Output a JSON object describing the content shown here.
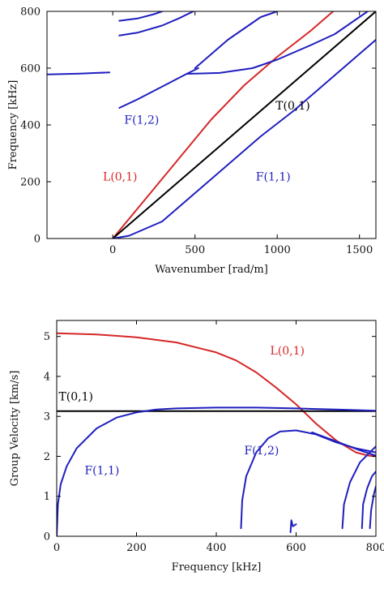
{
  "chart_data": [
    {
      "type": "line",
      "xlabel": "Wavenumber [rad/m]",
      "ylabel": "Frequency [kHz]",
      "xlim": [
        -400,
        1600
      ],
      "ylim": [
        0,
        800
      ],
      "xticks": [
        0,
        500,
        1000,
        1500
      ],
      "yticks": [
        0,
        200,
        400,
        600,
        800
      ],
      "grid": false,
      "colors": {
        "red": "#d62728",
        "blue": "#1f1fbf",
        "black": "#000000"
      },
      "series": [
        {
          "name": "L(0,1)",
          "color": "red",
          "x": [
            0,
            200,
            400,
            600,
            800,
            1000,
            1200,
            1340
          ],
          "y": [
            0,
            140,
            280,
            420,
            540,
            640,
            730,
            800
          ]
        },
        {
          "name": "T(0,1)",
          "color": "black",
          "x": [
            0,
            400,
            800,
            1200,
            1600
          ],
          "y": [
            0,
            200,
            400,
            600,
            800
          ]
        },
        {
          "name": "F(1,1)",
          "color": "blue",
          "x": [
            0,
            100,
            300,
            500,
            700,
            900,
            1100,
            1300,
            1500,
            1600
          ],
          "y": [
            0,
            10,
            60,
            160,
            260,
            360,
            450,
            550,
            650,
            700
          ]
        },
        {
          "name": "F(1,2)",
          "color": "blue",
          "x": [
            40,
            150,
            250,
            350,
            450,
            520
          ],
          "y": [
            460,
            490,
            520,
            550,
            580,
            600
          ]
        },
        {
          "name": "",
          "color": "blue",
          "x": [
            -400,
            -300,
            -200,
            -100,
            -20
          ],
          "y": [
            578,
            579,
            581,
            583,
            585
          ]
        },
        {
          "name": "",
          "color": "blue",
          "x": [
            450,
            650,
            850,
            1000,
            1200,
            1350,
            1550
          ],
          "y": [
            580,
            583,
            600,
            630,
            680,
            720,
            800
          ]
        },
        {
          "name": "",
          "color": "blue",
          "x": [
            40,
            150,
            300,
            400,
            490
          ],
          "y": [
            715,
            725,
            750,
            775,
            800
          ]
        },
        {
          "name": "",
          "color": "blue",
          "x": [
            40,
            150,
            250,
            300
          ],
          "y": [
            767,
            775,
            790,
            800
          ]
        },
        {
          "name": "",
          "color": "blue",
          "x": [
            500,
            600,
            700,
            800,
            900,
            1000
          ],
          "y": [
            600,
            650,
            700,
            740,
            780,
            800
          ]
        }
      ],
      "annotations": [
        {
          "text": "T(0,1)",
          "x": 990,
          "y": 455,
          "color": "black"
        },
        {
          "text": "F(1,2)",
          "x": 70,
          "y": 405,
          "color": "blue"
        },
        {
          "text": "L(0,1)",
          "x": -60,
          "y": 205,
          "color": "red"
        },
        {
          "text": "F(1,1)",
          "x": 870,
          "y": 205,
          "color": "blue"
        }
      ]
    },
    {
      "type": "line",
      "xlabel": "Frequency [kHz]",
      "ylabel": "Group Velocity [km/s]",
      "xlim": [
        0,
        800
      ],
      "ylim": [
        0,
        5.4
      ],
      "xticks": [
        0,
        200,
        400,
        600,
        800
      ],
      "yticks": [
        0,
        1,
        2,
        3,
        4,
        5
      ],
      "grid": false,
      "series": [
        {
          "name": "L(0,1)",
          "color": "red",
          "x": [
            0,
            100,
            200,
            300,
            400,
            450,
            500,
            550,
            600,
            650,
            700,
            750,
            780,
            800
          ],
          "y": [
            5.08,
            5.05,
            4.98,
            4.85,
            4.6,
            4.4,
            4.1,
            3.72,
            3.3,
            2.82,
            2.4,
            2.1,
            2.02,
            2.0
          ]
        },
        {
          "name": "T(0,1)",
          "color": "black",
          "x": [
            0,
            800
          ],
          "y": [
            3.13,
            3.13
          ]
        },
        {
          "name": "F(1,1)",
          "color": "blue",
          "x": [
            0,
            3,
            10,
            25,
            50,
            100,
            150,
            200,
            250,
            300,
            400,
            500,
            600,
            700,
            800
          ],
          "y": [
            0,
            0.8,
            1.3,
            1.75,
            2.2,
            2.7,
            2.97,
            3.1,
            3.17,
            3.2,
            3.22,
            3.22,
            3.2,
            3.17,
            3.14
          ]
        },
        {
          "name": "F(1,2)",
          "color": "blue",
          "x": [
            462,
            465,
            475,
            500,
            530,
            560,
            600,
            650,
            700,
            750,
            800
          ],
          "y": [
            0.2,
            0.9,
            1.5,
            2.1,
            2.45,
            2.62,
            2.65,
            2.55,
            2.35,
            2.2,
            2.1
          ]
        },
        {
          "name": "",
          "color": "blue",
          "x": [
            586,
            588,
            592,
            600
          ],
          "y": [
            0.1,
            0.4,
            0.25,
            0.3
          ]
        },
        {
          "name": "",
          "color": "blue",
          "x": [
            716,
            720,
            735,
            760,
            790,
            800
          ],
          "y": [
            0.2,
            0.8,
            1.35,
            1.85,
            2.15,
            2.25
          ]
        },
        {
          "name": "",
          "color": "blue",
          "x": [
            765,
            768,
            778,
            790,
            800
          ],
          "y": [
            0.2,
            0.8,
            1.2,
            1.5,
            1.62
          ]
        },
        {
          "name": "",
          "color": "blue",
          "x": [
            785,
            788,
            795,
            800
          ],
          "y": [
            0.2,
            0.65,
            1.05,
            1.25
          ]
        },
        {
          "name": "",
          "color": "blue",
          "x": [
            640,
            680,
            720,
            760,
            790,
            800
          ],
          "y": [
            2.6,
            2.45,
            2.3,
            2.15,
            2.05,
            2.02
          ]
        }
      ],
      "annotations": [
        {
          "text": "L(0,1)",
          "x": 535,
          "y": 4.55,
          "color": "red"
        },
        {
          "text": "T(0,1)",
          "x": 5,
          "y": 3.4,
          "color": "black"
        },
        {
          "text": "F(1,2)",
          "x": 470,
          "y": 2.05,
          "color": "blue"
        },
        {
          "text": "F(1,1)",
          "x": 70,
          "y": 1.55,
          "color": "blue"
        }
      ]
    }
  ]
}
